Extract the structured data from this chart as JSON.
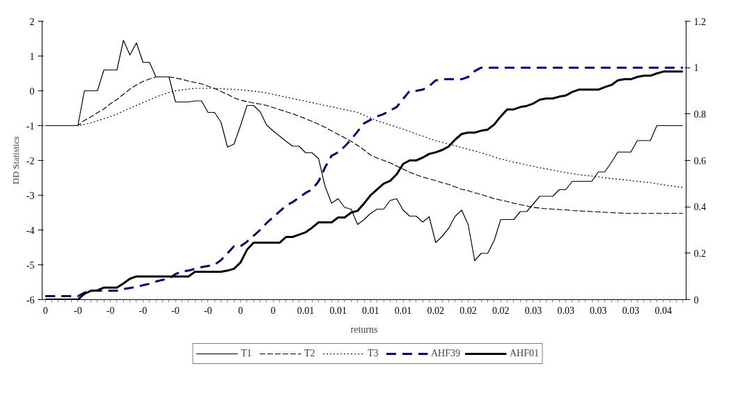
{
  "chart_data": {
    "type": "line",
    "xlabel": "returns",
    "ylabel": "DD Statistics",
    "legend": "bottom",
    "categories": [
      "0",
      null,
      null,
      null,
      null,
      "-0",
      null,
      null,
      null,
      null,
      "-0",
      null,
      null,
      null,
      null,
      "-0",
      null,
      null,
      null,
      null,
      "-0",
      null,
      null,
      null,
      null,
      "-0",
      null,
      null,
      null,
      null,
      "0",
      null,
      null,
      null,
      null,
      "0",
      null,
      null,
      null,
      null,
      "0.01",
      null,
      null,
      null,
      null,
      "0.01",
      null,
      null,
      null,
      null,
      "0.01",
      null,
      null,
      null,
      null,
      "0.01",
      null,
      null,
      null,
      null,
      "0.02",
      null,
      null,
      null,
      null,
      "0.02",
      null,
      null,
      null,
      null,
      "0.02",
      null,
      null,
      null,
      null,
      "0.03",
      null,
      null,
      null,
      null,
      "0.03",
      null,
      null,
      null,
      null,
      "0.03",
      null,
      null,
      null,
      null,
      "0.03",
      null,
      null,
      null,
      null,
      "0.04",
      null,
      null,
      null
    ],
    "ylim": [
      -6,
      2
    ],
    "yticks": [
      -6,
      -5,
      -4,
      -3,
      -2,
      -1,
      0,
      1,
      2
    ],
    "y2lim": [
      0,
      1.2
    ],
    "y2ticks": [
      0,
      0.2,
      0.4,
      0.6,
      0.8,
      1,
      1.2
    ],
    "series": [
      {
        "name": "T1",
        "color": "#000000",
        "line_style": "solid",
        "values": [
          -1,
          -1,
          -1,
          -1,
          -1,
          -1,
          0,
          0,
          0,
          0.6,
          0.6,
          0.6,
          1.45,
          1.03,
          1.38,
          0.82,
          0.82,
          0.4,
          0.4,
          0.4,
          -0.32,
          -0.32,
          -0.32,
          -0.29,
          -0.29,
          -0.62,
          -0.62,
          -0.9,
          -1.62,
          -1.53,
          -1.0,
          -0.42,
          -0.42,
          -0.6,
          -0.98,
          -1.15,
          -1.3,
          -1.45,
          -1.59,
          -1.59,
          -1.78,
          -1.78,
          -1.95,
          -2.75,
          -3.23,
          -3.1,
          -3.35,
          -3.4,
          -3.84,
          -3.7,
          -3.52,
          -3.4,
          -3.4,
          -3.15,
          -3.1,
          -3.43,
          -3.6,
          -3.6,
          -3.77,
          -3.62,
          -4.36,
          -4.18,
          -3.95,
          -3.6,
          -3.43,
          -3.85,
          -4.88,
          -4.67,
          -4.67,
          -4.3,
          -3.7,
          -3.7,
          -3.7,
          -3.47,
          -3.47,
          -3.25,
          -3.03,
          -3.03,
          -3.03,
          -2.84,
          -2.84,
          -2.6,
          -2.6,
          -2.6,
          -2.6,
          -2.33,
          -2.33,
          -2.06,
          -1.76,
          -1.76,
          -1.76,
          -1.43,
          -1.43,
          -1.43,
          -1.0,
          -1.0,
          -1.0,
          -1.0,
          -1.0
        ]
      },
      {
        "name": "T2",
        "color": "#000000",
        "line_style": "dashed",
        "values": [
          -1,
          -1,
          -1,
          -1,
          -1,
          -1,
          -0.85,
          -0.75,
          -0.63,
          -0.52,
          -0.37,
          -0.25,
          -0.1,
          0.05,
          0.17,
          0.27,
          0.34,
          0.4,
          0.4,
          0.4,
          0.37,
          0.33,
          0.28,
          0.24,
          0.2,
          0.13,
          0.07,
          -0.02,
          -0.1,
          -0.2,
          -0.27,
          -0.31,
          -0.35,
          -0.38,
          -0.42,
          -0.48,
          -0.54,
          -0.6,
          -0.66,
          -0.73,
          -0.8,
          -0.88,
          -0.96,
          -1.05,
          -1.15,
          -1.25,
          -1.35,
          -1.45,
          -1.57,
          -1.7,
          -1.85,
          -1.93,
          -2.0,
          -2.07,
          -2.16,
          -2.25,
          -2.34,
          -2.41,
          -2.48,
          -2.53,
          -2.58,
          -2.64,
          -2.69,
          -2.76,
          -2.83,
          -2.87,
          -2.93,
          -2.98,
          -3.04,
          -3.1,
          -3.14,
          -3.18,
          -3.23,
          -3.27,
          -3.31,
          -3.35,
          -3.37,
          -3.39,
          -3.4,
          -3.41,
          -3.42,
          -3.44,
          -3.45,
          -3.46,
          -3.47,
          -3.48,
          -3.49,
          -3.5,
          -3.51,
          -3.52,
          -3.52,
          -3.52,
          -3.52,
          -3.52,
          -3.52,
          -3.52,
          -3.52,
          -3.52,
          -3.52
        ]
      },
      {
        "name": "T3",
        "color": "#000000",
        "line_style": "dotted",
        "values": [
          -1,
          -1,
          -1,
          -1,
          -1,
          -1,
          -0.97,
          -0.92,
          -0.86,
          -0.8,
          -0.74,
          -0.67,
          -0.58,
          -0.5,
          -0.42,
          -0.34,
          -0.26,
          -0.18,
          -0.11,
          -0.05,
          0.0,
          0.03,
          0.05,
          0.07,
          0.07,
          0.07,
          0.07,
          0.06,
          0.05,
          0.04,
          0.03,
          0.01,
          -0.01,
          -0.03,
          -0.06,
          -0.1,
          -0.14,
          -0.18,
          -0.22,
          -0.26,
          -0.3,
          -0.34,
          -0.38,
          -0.42,
          -0.46,
          -0.5,
          -0.54,
          -0.58,
          -0.62,
          -0.7,
          -0.78,
          -0.86,
          -0.92,
          -0.98,
          -1.04,
          -1.1,
          -1.17,
          -1.24,
          -1.3,
          -1.37,
          -1.43,
          -1.48,
          -1.53,
          -1.58,
          -1.63,
          -1.68,
          -1.73,
          -1.78,
          -1.84,
          -1.9,
          -1.96,
          -2.0,
          -2.05,
          -2.09,
          -2.13,
          -2.17,
          -2.21,
          -2.24,
          -2.28,
          -2.32,
          -2.35,
          -2.38,
          -2.41,
          -2.43,
          -2.45,
          -2.47,
          -2.5,
          -2.52,
          -2.54,
          -2.56,
          -2.58,
          -2.6,
          -2.62,
          -2.64,
          -2.67,
          -2.7,
          -2.73,
          -2.75,
          -2.78
        ]
      },
      {
        "name": "AHF39",
        "color": "#000080",
        "line_style": "dashed",
        "axis": "y2",
        "values": [
          0.015,
          0.015,
          0.015,
          0.015,
          0.015,
          0.015,
          0.03,
          0.038,
          0.038,
          0.038,
          0.038,
          0.038,
          0.045,
          0.05,
          0.055,
          0.062,
          0.068,
          0.078,
          0.085,
          0.09,
          0.11,
          0.122,
          0.125,
          0.133,
          0.14,
          0.145,
          0.15,
          0.17,
          0.2,
          0.23,
          0.23,
          0.25,
          0.275,
          0.3,
          0.33,
          0.355,
          0.38,
          0.405,
          0.42,
          0.44,
          0.46,
          0.475,
          0.51,
          0.57,
          0.62,
          0.635,
          0.66,
          0.69,
          0.725,
          0.76,
          0.775,
          0.79,
          0.8,
          0.815,
          0.83,
          0.865,
          0.9,
          0.9,
          0.905,
          0.92,
          0.945,
          0.95,
          0.95,
          0.95,
          0.95,
          0.96,
          0.985,
          1.0,
          1.0,
          1.0,
          1.0,
          1.0,
          1.0,
          1.0,
          1.0,
          1.0,
          1.0,
          1.0,
          1.0,
          1.0,
          1.0,
          1.0,
          1.0,
          1.0,
          1.0,
          1.0,
          1.0,
          1.0,
          1.0,
          1.0,
          1.0,
          1.0,
          1.0,
          1.0,
          1.0,
          1.0,
          1.0,
          1.0,
          1.0
        ]
      },
      {
        "name": "AHF01",
        "color": "#000000",
        "line_style": "solid",
        "axis": "y2",
        "values": [
          0,
          0,
          0,
          0,
          0,
          0,
          0.025,
          0.038,
          0.04,
          0.052,
          0.052,
          0.052,
          0.07,
          0.09,
          0.1,
          0.1,
          0.1,
          0.1,
          0.1,
          0.1,
          0.1,
          0.1,
          0.1,
          0.12,
          0.12,
          0.12,
          0.12,
          0.12,
          0.125,
          0.133,
          0.16,
          0.215,
          0.245,
          0.245,
          0.245,
          0.245,
          0.245,
          0.27,
          0.27,
          0.28,
          0.29,
          0.31,
          0.333,
          0.333,
          0.333,
          0.354,
          0.354,
          0.375,
          0.383,
          0.415,
          0.45,
          0.475,
          0.5,
          0.512,
          0.54,
          0.585,
          0.6,
          0.6,
          0.612,
          0.628,
          0.635,
          0.645,
          0.66,
          0.69,
          0.714,
          0.72,
          0.72,
          0.728,
          0.733,
          0.755,
          0.79,
          0.82,
          0.82,
          0.83,
          0.835,
          0.845,
          0.862,
          0.867,
          0.867,
          0.875,
          0.88,
          0.895,
          0.905,
          0.905,
          0.905,
          0.905,
          0.916,
          0.925,
          0.945,
          0.95,
          0.95,
          0.96,
          0.965,
          0.965,
          0.975,
          0.983,
          0.983,
          0.983,
          0.983
        ]
      }
    ]
  }
}
